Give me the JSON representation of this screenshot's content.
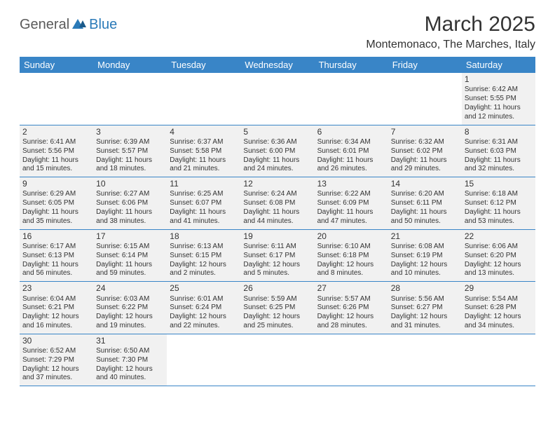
{
  "logo": {
    "general": "General",
    "blue": "Blue"
  },
  "title": "March 2025",
  "location": "Montemonaco, The Marches, Italy",
  "colors": {
    "header_bg": "#3985c7",
    "header_text": "#ffffff",
    "cell_bg": "#f1f1f1",
    "border": "#3985c7",
    "logo_blue": "#2a7ab8",
    "logo_gray": "#5a5a5a"
  },
  "day_headers": [
    "Sunday",
    "Monday",
    "Tuesday",
    "Wednesday",
    "Thursday",
    "Friday",
    "Saturday"
  ],
  "weeks": [
    [
      null,
      null,
      null,
      null,
      null,
      null,
      {
        "n": "1",
        "sunrise": "Sunrise: 6:42 AM",
        "sunset": "Sunset: 5:55 PM",
        "daylight": "Daylight: 11 hours and 12 minutes."
      }
    ],
    [
      {
        "n": "2",
        "sunrise": "Sunrise: 6:41 AM",
        "sunset": "Sunset: 5:56 PM",
        "daylight": "Daylight: 11 hours and 15 minutes."
      },
      {
        "n": "3",
        "sunrise": "Sunrise: 6:39 AM",
        "sunset": "Sunset: 5:57 PM",
        "daylight": "Daylight: 11 hours and 18 minutes."
      },
      {
        "n": "4",
        "sunrise": "Sunrise: 6:37 AM",
        "sunset": "Sunset: 5:58 PM",
        "daylight": "Daylight: 11 hours and 21 minutes."
      },
      {
        "n": "5",
        "sunrise": "Sunrise: 6:36 AM",
        "sunset": "Sunset: 6:00 PM",
        "daylight": "Daylight: 11 hours and 24 minutes."
      },
      {
        "n": "6",
        "sunrise": "Sunrise: 6:34 AM",
        "sunset": "Sunset: 6:01 PM",
        "daylight": "Daylight: 11 hours and 26 minutes."
      },
      {
        "n": "7",
        "sunrise": "Sunrise: 6:32 AM",
        "sunset": "Sunset: 6:02 PM",
        "daylight": "Daylight: 11 hours and 29 minutes."
      },
      {
        "n": "8",
        "sunrise": "Sunrise: 6:31 AM",
        "sunset": "Sunset: 6:03 PM",
        "daylight": "Daylight: 11 hours and 32 minutes."
      }
    ],
    [
      {
        "n": "9",
        "sunrise": "Sunrise: 6:29 AM",
        "sunset": "Sunset: 6:05 PM",
        "daylight": "Daylight: 11 hours and 35 minutes."
      },
      {
        "n": "10",
        "sunrise": "Sunrise: 6:27 AM",
        "sunset": "Sunset: 6:06 PM",
        "daylight": "Daylight: 11 hours and 38 minutes."
      },
      {
        "n": "11",
        "sunrise": "Sunrise: 6:25 AM",
        "sunset": "Sunset: 6:07 PM",
        "daylight": "Daylight: 11 hours and 41 minutes."
      },
      {
        "n": "12",
        "sunrise": "Sunrise: 6:24 AM",
        "sunset": "Sunset: 6:08 PM",
        "daylight": "Daylight: 11 hours and 44 minutes."
      },
      {
        "n": "13",
        "sunrise": "Sunrise: 6:22 AM",
        "sunset": "Sunset: 6:09 PM",
        "daylight": "Daylight: 11 hours and 47 minutes."
      },
      {
        "n": "14",
        "sunrise": "Sunrise: 6:20 AM",
        "sunset": "Sunset: 6:11 PM",
        "daylight": "Daylight: 11 hours and 50 minutes."
      },
      {
        "n": "15",
        "sunrise": "Sunrise: 6:18 AM",
        "sunset": "Sunset: 6:12 PM",
        "daylight": "Daylight: 11 hours and 53 minutes."
      }
    ],
    [
      {
        "n": "16",
        "sunrise": "Sunrise: 6:17 AM",
        "sunset": "Sunset: 6:13 PM",
        "daylight": "Daylight: 11 hours and 56 minutes."
      },
      {
        "n": "17",
        "sunrise": "Sunrise: 6:15 AM",
        "sunset": "Sunset: 6:14 PM",
        "daylight": "Daylight: 11 hours and 59 minutes."
      },
      {
        "n": "18",
        "sunrise": "Sunrise: 6:13 AM",
        "sunset": "Sunset: 6:15 PM",
        "daylight": "Daylight: 12 hours and 2 minutes."
      },
      {
        "n": "19",
        "sunrise": "Sunrise: 6:11 AM",
        "sunset": "Sunset: 6:17 PM",
        "daylight": "Daylight: 12 hours and 5 minutes."
      },
      {
        "n": "20",
        "sunrise": "Sunrise: 6:10 AM",
        "sunset": "Sunset: 6:18 PM",
        "daylight": "Daylight: 12 hours and 8 minutes."
      },
      {
        "n": "21",
        "sunrise": "Sunrise: 6:08 AM",
        "sunset": "Sunset: 6:19 PM",
        "daylight": "Daylight: 12 hours and 10 minutes."
      },
      {
        "n": "22",
        "sunrise": "Sunrise: 6:06 AM",
        "sunset": "Sunset: 6:20 PM",
        "daylight": "Daylight: 12 hours and 13 minutes."
      }
    ],
    [
      {
        "n": "23",
        "sunrise": "Sunrise: 6:04 AM",
        "sunset": "Sunset: 6:21 PM",
        "daylight": "Daylight: 12 hours and 16 minutes."
      },
      {
        "n": "24",
        "sunrise": "Sunrise: 6:03 AM",
        "sunset": "Sunset: 6:22 PM",
        "daylight": "Daylight: 12 hours and 19 minutes."
      },
      {
        "n": "25",
        "sunrise": "Sunrise: 6:01 AM",
        "sunset": "Sunset: 6:24 PM",
        "daylight": "Daylight: 12 hours and 22 minutes."
      },
      {
        "n": "26",
        "sunrise": "Sunrise: 5:59 AM",
        "sunset": "Sunset: 6:25 PM",
        "daylight": "Daylight: 12 hours and 25 minutes."
      },
      {
        "n": "27",
        "sunrise": "Sunrise: 5:57 AM",
        "sunset": "Sunset: 6:26 PM",
        "daylight": "Daylight: 12 hours and 28 minutes."
      },
      {
        "n": "28",
        "sunrise": "Sunrise: 5:56 AM",
        "sunset": "Sunset: 6:27 PM",
        "daylight": "Daylight: 12 hours and 31 minutes."
      },
      {
        "n": "29",
        "sunrise": "Sunrise: 5:54 AM",
        "sunset": "Sunset: 6:28 PM",
        "daylight": "Daylight: 12 hours and 34 minutes."
      }
    ],
    [
      {
        "n": "30",
        "sunrise": "Sunrise: 6:52 AM",
        "sunset": "Sunset: 7:29 PM",
        "daylight": "Daylight: 12 hours and 37 minutes."
      },
      {
        "n": "31",
        "sunrise": "Sunrise: 6:50 AM",
        "sunset": "Sunset: 7:30 PM",
        "daylight": "Daylight: 12 hours and 40 minutes."
      },
      null,
      null,
      null,
      null,
      null
    ]
  ]
}
